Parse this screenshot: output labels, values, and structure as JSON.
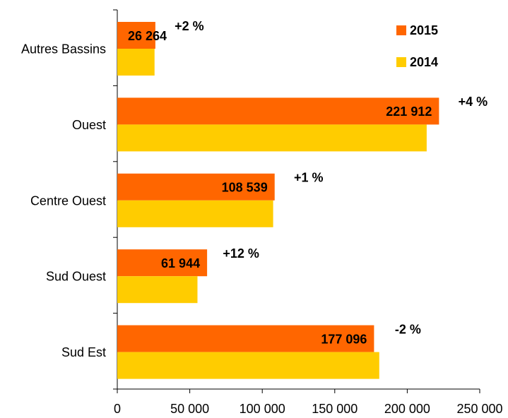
{
  "chart_data": {
    "type": "hbar",
    "categories": [
      "Autres Bassins",
      "Ouest",
      "Centre Ouest",
      "Sud Ouest",
      "Sud Est"
    ],
    "series": [
      {
        "name": "2015",
        "color": "#ff6600",
        "values": [
          26264,
          221912,
          108539,
          61944,
          177096
        ],
        "value_labels": [
          "26 264",
          "221 912",
          "108 539",
          "61 944",
          "177 096"
        ]
      },
      {
        "name": "2014",
        "color": "#ffcc00",
        "values": [
          25700,
          213400,
          107500,
          55300,
          180700
        ]
      }
    ],
    "annotations": [
      "+2 %",
      "+4 %",
      "+1 %",
      "+12 %",
      "-2 %"
    ],
    "annotation_color": "#339966",
    "xlim": [
      0,
      250000
    ],
    "xticks": [
      0,
      {
        "value": 50000,
        "label": "50 000"
      },
      {
        "value": 100000,
        "label": "100 000"
      },
      {
        "value": 150000,
        "label": "150 000"
      },
      {
        "value": 200000,
        "label": "200 000"
      },
      {
        "value": 250000,
        "label": "250 000"
      }
    ],
    "legend": "upper right",
    "grid": false
  }
}
